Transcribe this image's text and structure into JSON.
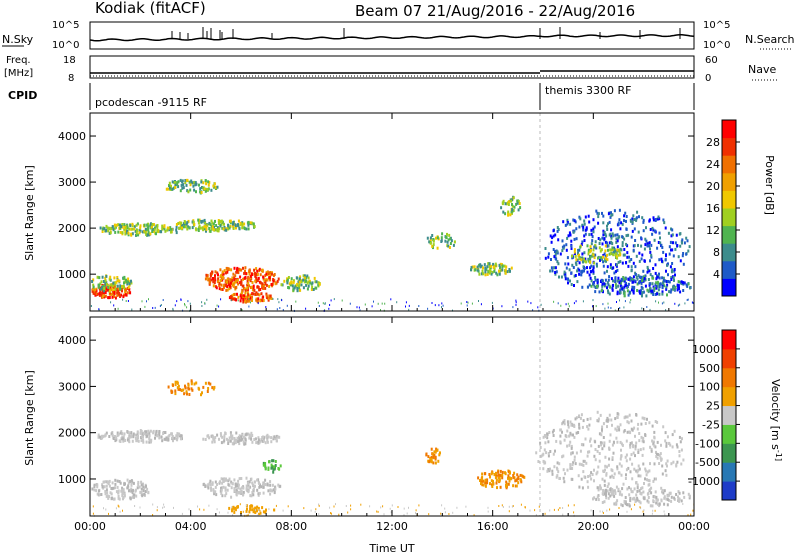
{
  "header": {
    "site": "Kodiak (fitACF)",
    "beam_date": "Beam 07  21/Aug/2016 - 22/Aug/2016"
  },
  "noise_panel": {
    "left_label": "N.Sky",
    "right_label": "N.Search",
    "left_ticks": [
      "10^5",
      "10^0"
    ],
    "right_ticks": [
      "10^5",
      "10^0"
    ]
  },
  "freq_panel": {
    "left_label_1": "Freq.",
    "left_label_2": "[MHz]",
    "right_label": "Nave",
    "left_ticks": [
      "18",
      "8"
    ],
    "right_ticks": [
      "60",
      "0"
    ]
  },
  "cpid_panel": {
    "label": "CPID",
    "segments": [
      "pcodescan -9115 RF",
      "themis 3300 RF"
    ]
  },
  "chart_data": [
    {
      "type": "heatmap",
      "title": "",
      "xlabel": "",
      "ylabel": "Slant Range [km]",
      "x_ticks": [
        "00:00",
        "04:00",
        "08:00",
        "12:00",
        "16:00",
        "20:00",
        "00:00"
      ],
      "y_ticks": [
        "1000",
        "2000",
        "3000",
        "4000"
      ],
      "ylim": [
        200,
        4500
      ],
      "colorbar": {
        "label": "Power [dB]",
        "ticks": [
          "4",
          "8",
          "12",
          "16",
          "20",
          "24",
          "28"
        ],
        "range": [
          0,
          30
        ],
        "colors": [
          "#0000ff",
          "#1e5ac8",
          "#3c8c8c",
          "#50b450",
          "#a0d020",
          "#f0c800",
          "#f0a000",
          "#f07000",
          "#f03000",
          "#ff0000"
        ]
      }
    },
    {
      "type": "heatmap",
      "title": "",
      "xlabel": "Time UT",
      "ylabel": "Slant Range [km]",
      "x_ticks": [
        "00:00",
        "04:00",
        "08:00",
        "12:00",
        "16:00",
        "20:00",
        "00:00"
      ],
      "y_ticks": [
        "1000",
        "2000",
        "3000",
        "4000"
      ],
      "ylim": [
        200,
        4500
      ],
      "colorbar": {
        "label": "Velocity [m s^-1]",
        "ticks": [
          "1000",
          "500",
          "100",
          "25",
          "-25",
          "-100",
          "-500",
          "-1000"
        ],
        "colors": [
          "#1e3cc8",
          "#2878b4",
          "#3c9650",
          "#5ac83c",
          "#c8c8c8",
          "#f0a000",
          "#f07800",
          "#f04000",
          "#ff0000"
        ]
      }
    }
  ]
}
